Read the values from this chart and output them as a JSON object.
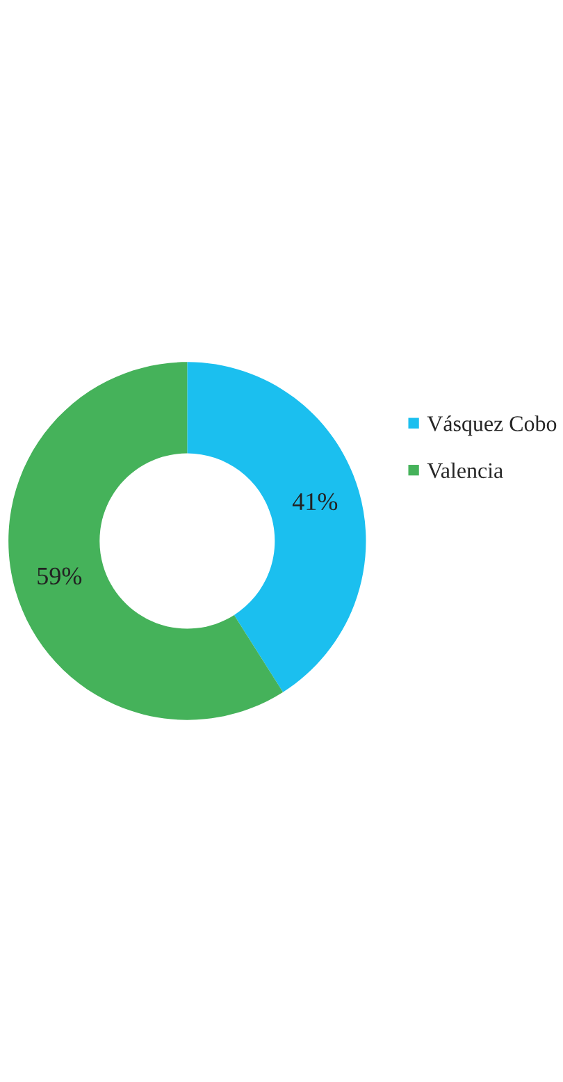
{
  "chart_data": {
    "type": "donut",
    "categories": [
      "Vásquez Cobo",
      "Valencia"
    ],
    "values": [
      41,
      59
    ],
    "colors": [
      "#1bbfef",
      "#45b25a"
    ],
    "value_labels": [
      "41%",
      "59%"
    ],
    "legend": "right"
  }
}
